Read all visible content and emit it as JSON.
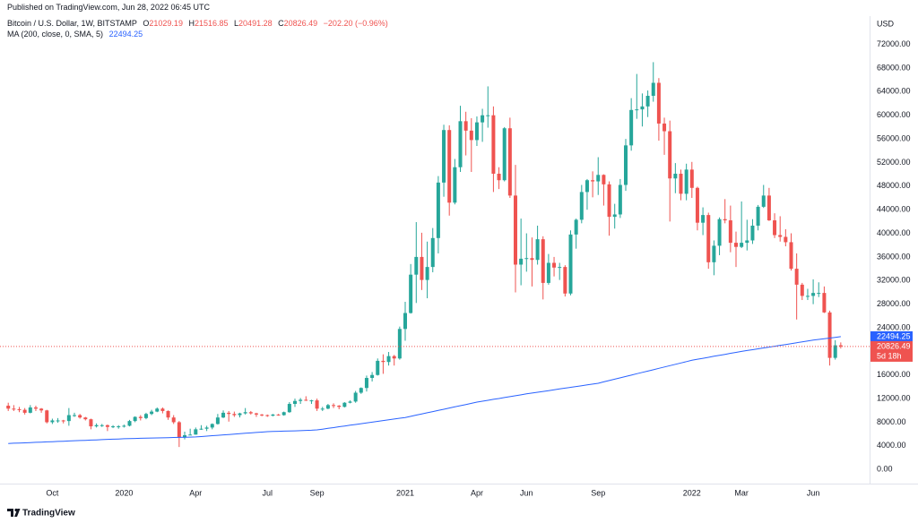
{
  "header": {
    "published": "Published on TradingView.com, Jun 28, 2022 06:45 UTC",
    "symbol": "Bitcoin / U.S. Dollar, 1W, BITSTAMP",
    "ohlc_prefixes": [
      "O",
      "H",
      "L",
      "C"
    ],
    "change": "−202.20 (−0.96%)"
  },
  "chart_data": {
    "type": "candlestick",
    "categories": [
      null,
      null,
      null,
      null,
      null,
      null,
      null,
      null,
      "Oct",
      null,
      null,
      null,
      null,
      null,
      null,
      null,
      null,
      null,
      null,
      null,
      null,
      "2020",
      null,
      null,
      null,
      null,
      null,
      null,
      null,
      null,
      null,
      null,
      null,
      null,
      "Apr",
      null,
      null,
      null,
      null,
      null,
      null,
      null,
      null,
      null,
      null,
      null,
      null,
      "Jul",
      null,
      null,
      null,
      null,
      null,
      null,
      null,
      null,
      "Sep",
      null,
      null,
      null,
      null,
      null,
      null,
      null,
      null,
      null,
      null,
      null,
      null,
      null,
      null,
      null,
      "2021",
      null,
      null,
      null,
      null,
      null,
      null,
      null,
      null,
      null,
      null,
      null,
      null,
      "Apr",
      null,
      null,
      null,
      null,
      null,
      null,
      null,
      null,
      "Jun",
      null,
      null,
      null,
      null,
      null,
      null,
      null,
      null,
      null,
      null,
      null,
      null,
      "Sep",
      null,
      null,
      null,
      null,
      null,
      null,
      null,
      null,
      null,
      null,
      null,
      null,
      null,
      null,
      null,
      null,
      "2022",
      null,
      null,
      null,
      null,
      null,
      null,
      null,
      null,
      "Mar",
      null,
      null,
      null,
      null,
      null,
      null,
      null,
      null,
      null,
      null,
      null,
      null,
      "Jun",
      null,
      null,
      null,
      null,
      null
    ],
    "open": [
      10800,
      10300,
      10200,
      10100,
      9600,
      10500,
      10300,
      10000,
      8000,
      8300,
      8300,
      8200,
      9200,
      9200,
      8800,
      8500,
      7300,
      7500,
      7500,
      7200,
      7300,
      7300,
      7400,
      8200,
      8900,
      8700,
      9400,
      9800,
      10300,
      9900,
      8800,
      8000,
      5400,
      5800,
      5900,
      6800,
      6900,
      7100,
      7700,
      8800,
      9600,
      9400,
      9200,
      9500,
      9700,
      9500,
      9300,
      9200,
      9100,
      9300,
      9200,
      9700,
      11100,
      11600,
      11800,
      11700,
      11700,
      10300,
      10300,
      10900,
      10800,
      10600,
      11300,
      11500,
      13000,
      13800,
      15500,
      16000,
      18400,
      18200,
      19200,
      18800,
      23800,
      26500,
      33000,
      36000,
      32100,
      34300,
      39200,
      48600,
      57500,
      45200,
      51200,
      59000,
      57400,
      55800,
      58800,
      60000,
      60000,
      50100,
      49000,
      57800,
      46400,
      34700,
      35700,
      35800,
      35500,
      39000,
      31600,
      35000,
      34200,
      34300,
      29800,
      39800,
      42300,
      47000,
      49000,
      48800,
      49900,
      48300,
      42800,
      43200,
      48200,
      54900,
      60900,
      61000,
      61500,
      63300,
      65500,
      58600,
      57300,
      49300,
      50100,
      46700,
      50800,
      47700,
      41800,
      43100,
      35100,
      37900,
      42400,
      42200,
      38400,
      37700,
      38400,
      38800,
      41300,
      44500,
      46400,
      42200,
      39700,
      39400,
      38500,
      34000,
      31300,
      29400,
      29400,
      29900,
      29900,
      26600,
      18900,
      21029.19
    ],
    "high": [
      11300,
      10900,
      10600,
      10400,
      10900,
      10800,
      10400,
      10100,
      8600,
      8700,
      8400,
      10400,
      9600,
      9400,
      8900,
      8600,
      7800,
      7700,
      7600,
      7500,
      7500,
      7600,
      8400,
      9000,
      9200,
      9600,
      10100,
      10500,
      10500,
      10000,
      9200,
      8200,
      6400,
      6900,
      7100,
      7500,
      7400,
      7800,
      9400,
      10000,
      9900,
      9800,
      9600,
      10400,
      9900,
      9600,
      9400,
      9300,
      9400,
      9400,
      9800,
      11400,
      12000,
      12100,
      12400,
      11800,
      12000,
      10600,
      11100,
      11200,
      10900,
      11400,
      11700,
      13300,
      13900,
      15900,
      16500,
      18800,
      19500,
      19900,
      19400,
      24200,
      28400,
      34800,
      41900,
      40100,
      38600,
      40900,
      49700,
      58400,
      58300,
      52600,
      61600,
      60600,
      59500,
      59800,
      61100,
      64900,
      61500,
      51200,
      58000,
      59600,
      51600,
      42500,
      40000,
      39300,
      41300,
      39500,
      36500,
      36000,
      35000,
      34600,
      40500,
      42500,
      48200,
      49200,
      50500,
      52900,
      50000,
      48800,
      45000,
      49200,
      56000,
      62900,
      67000,
      63700,
      64200,
      69000,
      66300,
      59600,
      59100,
      51900,
      50800,
      51800,
      52100,
      47900,
      44400,
      43500,
      38800,
      42700,
      45800,
      44700,
      40300,
      45400,
      42300,
      42400,
      44800,
      48200,
      47700,
      43400,
      42900,
      40700,
      40000,
      36600,
      31600,
      30600,
      32200,
      31700,
      31000,
      26900,
      21900,
      21516.85
    ],
    "low": [
      9900,
      9900,
      9700,
      9300,
      9500,
      9900,
      9600,
      7800,
      7700,
      7900,
      7800,
      7400,
      8900,
      8600,
      8300,
      6800,
      7100,
      7200,
      6500,
      7000,
      6900,
      7100,
      7300,
      8000,
      8300,
      8500,
      9200,
      9700,
      9500,
      8400,
      7700,
      3800,
      5100,
      5800,
      5900,
      6700,
      6500,
      6800,
      7600,
      8700,
      8100,
      8900,
      8800,
      9300,
      9300,
      8900,
      9000,
      8900,
      9000,
      9100,
      9100,
      9600,
      10600,
      11100,
      11600,
      11100,
      9900,
      9900,
      10200,
      10400,
      10200,
      10500,
      11200,
      11300,
      12800,
      13200,
      14900,
      15900,
      16200,
      17600,
      17600,
      18600,
      21800,
      26400,
      28200,
      30400,
      29000,
      33400,
      36600,
      46200,
      43000,
      44900,
      50400,
      53200,
      50400,
      54800,
      55500,
      57900,
      47000,
      47500,
      48800,
      46000,
      30000,
      31200,
      33500,
      31000,
      34700,
      28800,
      31300,
      32700,
      32100,
      29300,
      29500,
      37400,
      41700,
      44000,
      46100,
      46500,
      44700,
      39600,
      40800,
      42600,
      47200,
      54000,
      59400,
      58100,
      59700,
      62300,
      55700,
      53300,
      42000,
      46800,
      45600,
      45600,
      46000,
      40500,
      39700,
      34000,
      32900,
      36300,
      41700,
      36800,
      34300,
      37500,
      37100,
      38200,
      40500,
      44300,
      42100,
      39200,
      38600,
      37800,
      33700,
      25400,
      28700,
      28700,
      28000,
      29200,
      26500,
      17600,
      18600,
      20491.28
    ],
    "close": [
      10300,
      10200,
      10100,
      9600,
      10500,
      10300,
      10000,
      8000,
      8300,
      8300,
      8200,
      9200,
      9200,
      8800,
      8500,
      7300,
      7500,
      7500,
      7200,
      7300,
      7300,
      7400,
      8200,
      8900,
      8700,
      9400,
      9800,
      10300,
      9900,
      8800,
      8000,
      5400,
      5800,
      5900,
      6800,
      6900,
      7100,
      7700,
      8800,
      9600,
      9400,
      9200,
      9500,
      9700,
      9500,
      9300,
      9200,
      9100,
      9300,
      9200,
      9700,
      11100,
      11600,
      11800,
      11700,
      11700,
      10300,
      10300,
      10900,
      10800,
      10600,
      11300,
      11500,
      13000,
      13800,
      15500,
      16000,
      18400,
      18200,
      19200,
      18800,
      23800,
      26500,
      33000,
      36000,
      32100,
      34300,
      39200,
      48600,
      57500,
      45200,
      51200,
      59000,
      57400,
      55800,
      58800,
      60000,
      60000,
      50100,
      49000,
      57800,
      46400,
      34700,
      35700,
      35800,
      35500,
      39000,
      31600,
      35000,
      34200,
      34300,
      29800,
      39800,
      42300,
      47000,
      49000,
      48800,
      49900,
      48300,
      42800,
      43200,
      48200,
      54900,
      60900,
      61000,
      61500,
      63300,
      65500,
      58600,
      57300,
      49300,
      50100,
      46700,
      50800,
      47700,
      41800,
      43100,
      35100,
      37900,
      42400,
      42200,
      38400,
      37700,
      38400,
      38800,
      41300,
      44500,
      46400,
      42200,
      39700,
      39400,
      38500,
      34000,
      31300,
      29400,
      29400,
      29900,
      29900,
      26600,
      18900,
      21028.69,
      20826.49
    ],
    "up_color": "#26a69a",
    "down_color": "#ef5350",
    "ma": {
      "name": "MA (200, close, 0, SMA, 5)",
      "color": "#2962ff",
      "values": [
        4400,
        4440,
        4480,
        4510,
        4550,
        4590,
        4630,
        4670,
        4700,
        4740,
        4780,
        4820,
        4860,
        4900,
        4930,
        4970,
        5010,
        5050,
        5090,
        5120,
        5160,
        5200,
        5220,
        5250,
        5270,
        5290,
        5320,
        5340,
        5360,
        5380,
        5410,
        5430,
        5450,
        5480,
        5500,
        5570,
        5640,
        5710,
        5780,
        5850,
        5920,
        5980,
        6050,
        6120,
        6190,
        6260,
        6330,
        6400,
        6430,
        6460,
        6490,
        6510,
        6540,
        6570,
        6610,
        6650,
        6700,
        6830,
        6960,
        7090,
        7230,
        7360,
        7490,
        7620,
        7750,
        7880,
        8010,
        8140,
        8280,
        8410,
        8540,
        8670,
        8800,
        9000,
        9200,
        9400,
        9600,
        9800,
        10000,
        10200,
        10400,
        10600,
        10800,
        11000,
        11200,
        11400,
        11560,
        11710,
        11870,
        12020,
        12180,
        12330,
        12490,
        12640,
        12800,
        12940,
        13080,
        13220,
        13350,
        13490,
        13630,
        13770,
        13910,
        14050,
        14190,
        14320,
        14460,
        14600,
        14830,
        15060,
        15290,
        15520,
        15750,
        15980,
        16210,
        16440,
        16660,
        16890,
        17120,
        17350,
        17580,
        17810,
        18040,
        18270,
        18500,
        18670,
        18830,
        19000,
        19170,
        19330,
        19500,
        19670,
        19830,
        20000,
        20150,
        20290,
        20440,
        20580,
        20730,
        20880,
        21020,
        21170,
        21320,
        21460,
        21610,
        21750,
        21900,
        22020,
        22140,
        22260,
        22380,
        22494.25
      ]
    },
    "ylim": [
      -2400,
      76800
    ],
    "yticks": [
      {
        "value": 0,
        "label": "0.00"
      },
      {
        "value": 4000,
        "label": "4000.00"
      },
      {
        "value": 8000,
        "label": "8000.00"
      },
      {
        "value": 12000,
        "label": "12000.00"
      },
      {
        "value": 16000,
        "label": "16000.00"
      },
      {
        "value": 20000,
        "label": "20000.00"
      },
      {
        "value": 24000,
        "label": "24000.00"
      },
      {
        "value": 28000,
        "label": "28000.00"
      },
      {
        "value": 32000,
        "label": "32000.00"
      },
      {
        "value": 36000,
        "label": "36000.00"
      },
      {
        "value": 40000,
        "label": "40000.00"
      },
      {
        "value": 44000,
        "label": "44000.00"
      },
      {
        "value": 48000,
        "label": "48000.00"
      },
      {
        "value": 52000,
        "label": "52000.00"
      },
      {
        "value": 56000,
        "label": "56000.00"
      },
      {
        "value": 60000,
        "label": "60000.00"
      },
      {
        "value": 64000,
        "label": "64000.00"
      },
      {
        "value": 68000,
        "label": "68000.00"
      },
      {
        "value": 72000,
        "label": "72000.00"
      }
    ],
    "y_axis_label": "USD",
    "countdown": "5d 18h"
  },
  "footer": {
    "brand": "TradingView"
  }
}
